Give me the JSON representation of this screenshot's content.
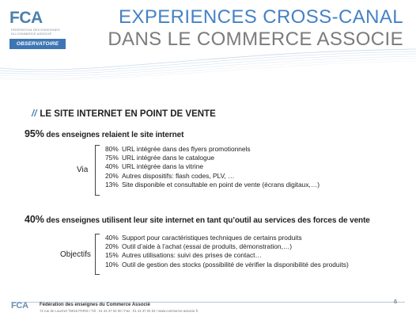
{
  "header": {
    "logo_text": "FCA",
    "logo_tagline": "FÉDÉRATION DES ENSEIGNES DU COMMERCE ASSOCIÉ",
    "badge": "OBSERVATOIRE",
    "title_line1": "EXPERIENCES CROSS-CANAL",
    "title_line2": "DANS LE COMMERCE ASSOCIE",
    "colors": {
      "primary_blue": "#4582c4",
      "grey": "#7b7b7b",
      "badge_bg": "#3d76b3"
    }
  },
  "section": {
    "prefix": "//",
    "title": "LE SITE INTERNET EN POINT DE VENTE"
  },
  "block1": {
    "pct": "95%",
    "text": " des enseignes relaient le site internet",
    "label": "Via",
    "items": [
      {
        "pct": "80%",
        "text": "URL intégrée dans des flyers promotionnels"
      },
      {
        "pct": "75%",
        "text": "URL intégrée dans le catalogue"
      },
      {
        "pct": "40%",
        "text": "URL intégrée dans la vitrine"
      },
      {
        "pct": "20%",
        "text": "Autres dispositifs: flash codes, PLV, …"
      },
      {
        "pct": "13%",
        "text": "Site disponible et consultable en point de vente (écrans digitaux,…)"
      }
    ]
  },
  "block2": {
    "pct": "40%",
    "text": " des enseignes utilisent leur site internet en tant qu’outil au services des forces de vente",
    "label": "Objectifs",
    "items": [
      {
        "pct": "40%",
        "text": "Support pour caractéristiques techniques de certains produits"
      },
      {
        "pct": "20%",
        "text": "Outil d’aide à l’achat (essai de produits, démonstration,…)"
      },
      {
        "pct": "15%",
        "text": "Autres utilisations: suivi des prises de contact…"
      },
      {
        "pct": "10%",
        "text": "Outil de gestion des stocks (possibilité de vérifier la disponibilité des produits)"
      }
    ]
  },
  "footer": {
    "logo": "FCA",
    "org": "Fédération des enseignes du Commerce Associé",
    "address": "72 rue de Lourmel 75015 PARIS / Tél : 01 44 37 02 00 / Fax : 01 44 37 02 02 / www.commerce-associe.fr",
    "page": "6"
  }
}
